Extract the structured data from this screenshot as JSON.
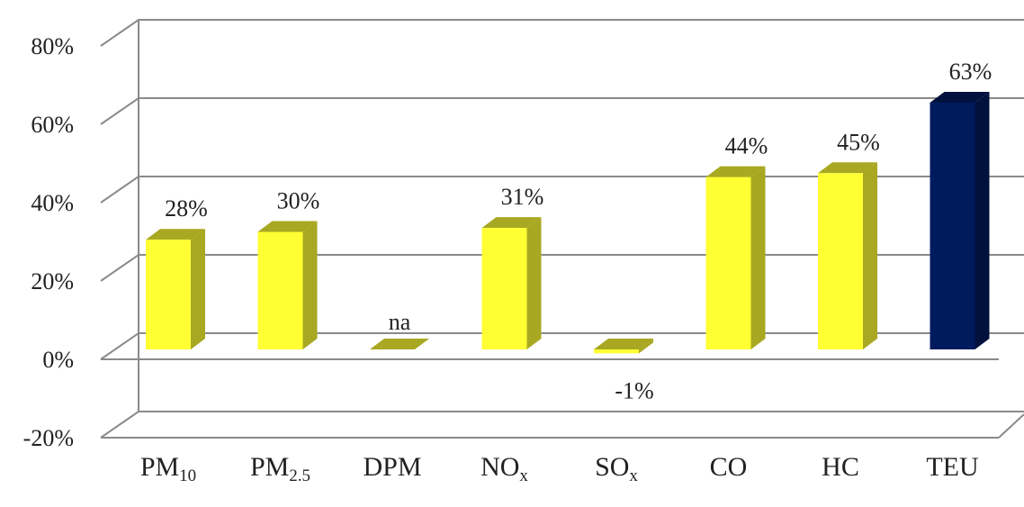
{
  "chart_data": {
    "type": "bar",
    "three_d": true,
    "categories": [
      {
        "base": "PM",
        "sub": "10"
      },
      {
        "base": "PM",
        "sub": "2.5"
      },
      {
        "base": "DPM",
        "sub": ""
      },
      {
        "base": "NO",
        "sub": "x"
      },
      {
        "base": "SO",
        "sub": "x"
      },
      {
        "base": "CO",
        "sub": ""
      },
      {
        "base": "HC",
        "sub": ""
      },
      {
        "base": "TEU",
        "sub": ""
      }
    ],
    "values": [
      28,
      30,
      0,
      31,
      -1,
      44,
      45,
      63
    ],
    "data_labels": [
      "28%",
      "30%",
      "na",
      "31%",
      "-1%",
      "44%",
      "45%",
      "63%"
    ],
    "bar_colors": [
      "#ffff33",
      "#ffff33",
      "#ffff33",
      "#ffff33",
      "#ffff33",
      "#ffff33",
      "#ffff33",
      "#001a5e"
    ],
    "ylim": [
      -20,
      80
    ],
    "yticks": [
      -20,
      0,
      20,
      40,
      60,
      80
    ],
    "ytick_labels": [
      "-20%",
      "0%",
      "20%",
      "40%",
      "60%",
      "80%"
    ],
    "grid": true,
    "legend": "none",
    "title": "",
    "xlabel": "",
    "ylabel": ""
  }
}
